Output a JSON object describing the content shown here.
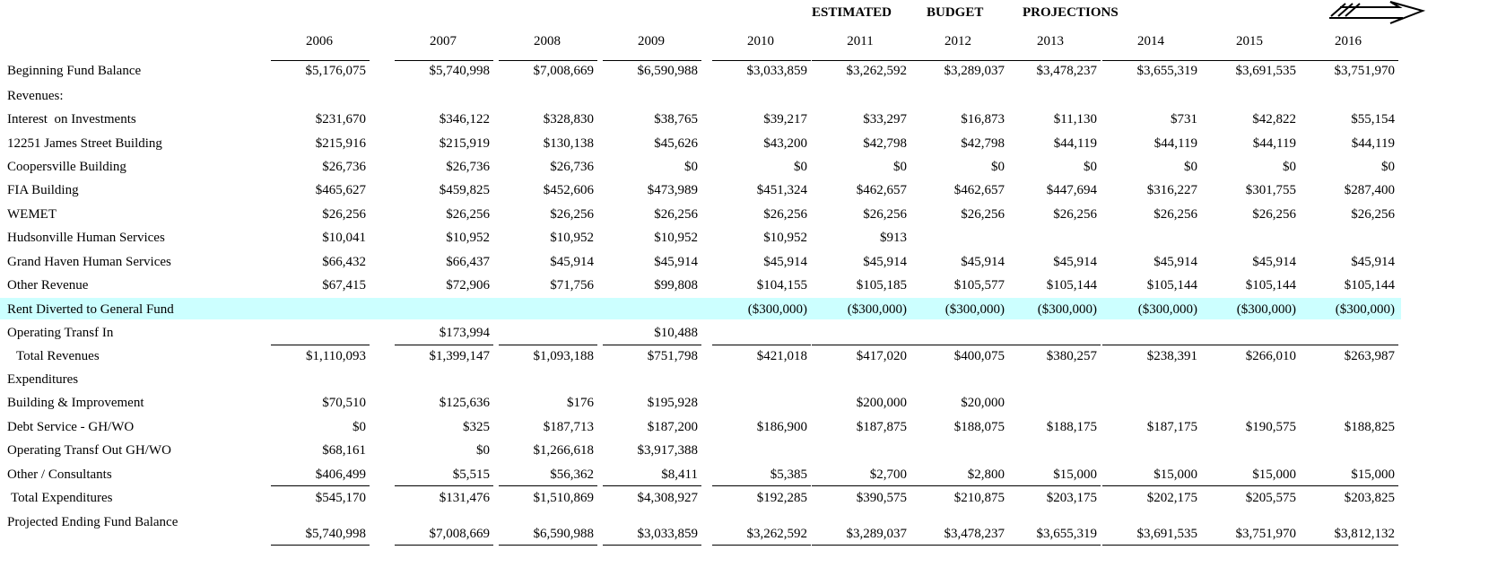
{
  "header": {
    "title_words": [
      "ESTIMATED",
      "BUDGET",
      "PROJECTIONS"
    ]
  },
  "table": {
    "columns": [
      "2006",
      "2007",
      "2008",
      "2009",
      "2010",
      "2011",
      "2012",
      "2013",
      "2014",
      "2015",
      "2016"
    ],
    "rows": [
      {
        "label": "Beginning Fund Balance",
        "values": [
          "$5,176,075",
          "$5,740,998",
          "$7,008,669",
          "$6,590,988",
          "$3,033,859",
          "$3,262,592",
          "$3,289,037",
          "$3,478,237",
          "$3,655,319",
          "$3,691,535",
          "$3,751,970"
        ]
      },
      {
        "label": "Revenues:",
        "values": [
          null,
          null,
          null,
          null,
          null,
          null,
          null,
          null,
          null,
          null,
          null
        ]
      },
      {
        "label": "Interest  on Investments",
        "values": [
          "$231,670",
          "$346,122",
          "$328,830",
          "$38,765",
          "$39,217",
          "$33,297",
          "$16,873",
          "$11,130",
          "$731",
          "$42,822",
          "$55,154"
        ]
      },
      {
        "label": "12251 James Street Building",
        "values": [
          "$215,916",
          "$215,919",
          "$130,138",
          "$45,626",
          "$43,200",
          "$42,798",
          "$42,798",
          "$44,119",
          "$44,119",
          "$44,119",
          "$44,119"
        ]
      },
      {
        "label": "Coopersville Building",
        "values": [
          "$26,736",
          "$26,736",
          "$26,736",
          "$0",
          "$0",
          "$0",
          "$0",
          "$0",
          "$0",
          "$0",
          "$0"
        ]
      },
      {
        "label": "FIA Building",
        "values": [
          "$465,627",
          "$459,825",
          "$452,606",
          "$473,989",
          "$451,324",
          "$462,657",
          "$462,657",
          "$447,694",
          "$316,227",
          "$301,755",
          "$287,400"
        ]
      },
      {
        "label": "WEMET",
        "values": [
          "$26,256",
          "$26,256",
          "$26,256",
          "$26,256",
          "$26,256",
          "$26,256",
          "$26,256",
          "$26,256",
          "$26,256",
          "$26,256",
          "$26,256"
        ]
      },
      {
        "label": "Hudsonville Human Services",
        "values": [
          "$10,041",
          "$10,952",
          "$10,952",
          "$10,952",
          "$10,952",
          "$913",
          null,
          null,
          null,
          null,
          null
        ]
      },
      {
        "label": "Grand Haven Human Services",
        "values": [
          "$66,432",
          "$66,437",
          "$45,914",
          "$45,914",
          "$45,914",
          "$45,914",
          "$45,914",
          "$45,914",
          "$45,914",
          "$45,914",
          "$45,914"
        ]
      },
      {
        "label": "Other Revenue",
        "values": [
          "$67,415",
          "$72,906",
          "$71,756",
          "$99,808",
          "$104,155",
          "$105,185",
          "$105,577",
          "$105,144",
          "$105,144",
          "$105,144",
          "$105,144"
        ]
      },
      {
        "label": "Rent Diverted to General Fund",
        "highlight": "#ccffff",
        "values": [
          null,
          null,
          null,
          null,
          "($300,000)",
          "($300,000)",
          "($300,000)",
          "($300,000)",
          "($300,000)",
          "($300,000)",
          "($300,000)"
        ]
      },
      {
        "label": "Operating Transf In",
        "values": [
          null,
          "$173,994",
          null,
          "$10,488",
          null,
          null,
          null,
          null,
          null,
          null,
          null
        ]
      },
      {
        "label": "Total Revenues",
        "values": [
          "$1,110,093",
          "$1,399,147",
          "$1,093,188",
          "$751,798",
          "$421,018",
          "$417,020",
          "$400,075",
          "$380,257",
          "$238,391",
          "$266,010",
          "$263,987"
        ]
      },
      {
        "label": "Expenditures",
        "values": [
          null,
          null,
          null,
          null,
          null,
          null,
          null,
          null,
          null,
          null,
          null
        ]
      },
      {
        "label": "Building & Improvement",
        "values": [
          "$70,510",
          "$125,636",
          "$176",
          "$195,928",
          null,
          "$200,000",
          "$20,000",
          null,
          null,
          null,
          null
        ]
      },
      {
        "label": "Debt Service - GH/WO",
        "values": [
          "$0",
          "$325",
          "$187,713",
          "$187,200",
          "$186,900",
          "$187,875",
          "$188,075",
          "$188,175",
          "$187,175",
          "$190,575",
          "$188,825"
        ]
      },
      {
        "label": "Operating Transf Out GH/WO",
        "values": [
          "$68,161",
          "$0",
          "$1,266,618",
          "$3,917,388",
          null,
          null,
          null,
          null,
          null,
          null,
          null
        ]
      },
      {
        "label": "Other / Consultants",
        "values": [
          "$406,499",
          "$5,515",
          "$56,362",
          "$8,411",
          "$5,385",
          "$2,700",
          "$2,800",
          "$15,000",
          "$15,000",
          "$15,000",
          "$15,000"
        ]
      },
      {
        "label": "Total Expenditures",
        "values": [
          "$545,170",
          "$131,476",
          "$1,510,869",
          "$4,308,927",
          "$192,285",
          "$390,575",
          "$210,875",
          "$203,175",
          "$202,175",
          "$205,575",
          "$203,825"
        ]
      },
      {
        "label": "Projected Ending Fund Balance",
        "values": [
          "$5,740,998",
          "$7,008,669",
          "$6,590,988",
          "$3,033,859",
          "$3,262,592",
          "$3,289,037",
          "$3,478,237",
          "$3,655,319",
          "$3,691,535",
          "$3,751,970",
          "$3,812,132"
        ]
      }
    ]
  }
}
